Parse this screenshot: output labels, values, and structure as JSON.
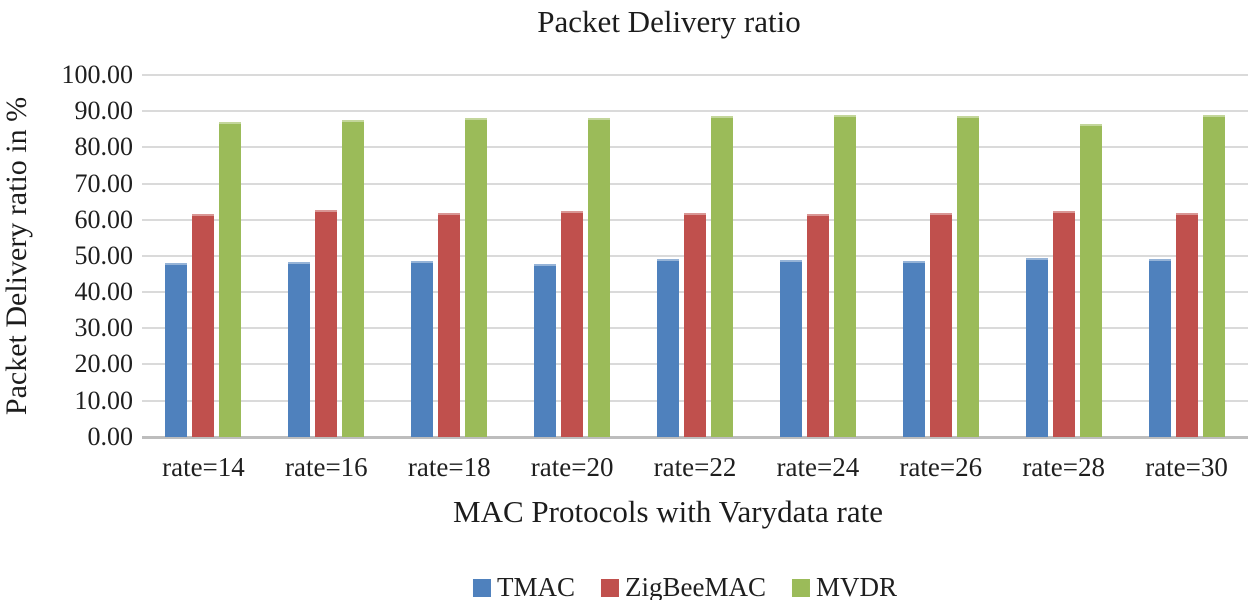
{
  "chart_data": {
    "type": "bar",
    "title": "Packet Delivery ratio",
    "xlabel": "MAC Protocols with Varydata rate",
    "ylabel": "Packet Delivery ratio in %",
    "categories": [
      "rate=14",
      "rate=16",
      "rate=18",
      "rate=20",
      "rate=22",
      "rate=24",
      "rate=26",
      "rate=28",
      "rate=30"
    ],
    "series": [
      {
        "name": "TMAC",
        "color": "#4F81BD",
        "values": [
          48.1,
          48.4,
          48.7,
          47.8,
          49.0,
          48.9,
          48.6,
          49.3,
          49.2
        ]
      },
      {
        "name": "ZigBeeMAC",
        "color": "#C0504D",
        "values": [
          61.5,
          62.6,
          61.9,
          62.5,
          61.8,
          61.6,
          61.9,
          62.4,
          61.9
        ]
      },
      {
        "name": "MVDR",
        "color": "#9BBB59",
        "values": [
          86.9,
          87.5,
          88.1,
          88.0,
          88.7,
          88.9,
          88.6,
          86.5,
          89.0
        ]
      }
    ],
    "ylim": [
      0,
      100
    ],
    "ytick_step": 10,
    "ytick_decimals": 2,
    "grid": true,
    "legend_position": "bottom"
  },
  "style": {
    "gridline_color": "#DADADA",
    "axis_line_color": "#BDBDBD",
    "text_color": "#1F1F1F"
  }
}
